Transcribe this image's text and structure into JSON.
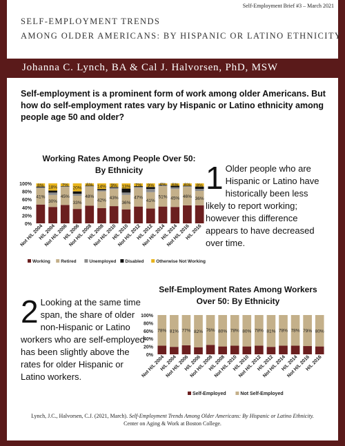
{
  "header": {
    "brief": "Self-Employment Brief #3 – March 2021",
    "title_line1": "Self-Employment Trends",
    "title_line2": "Among Older Americans: By Hispanic or Latino Ethnicity",
    "authors": "Johanna C. Lynch, BA & Cal J. Halvorsen, PhD, MSW"
  },
  "intro": "Self-employment is a prominent form of work among older Americans. But how do self-employment rates vary by Hispanic or Latino ethnicity among people age 50 and older?",
  "chart1_title_line1": "Working Rates Among People Over 50:",
  "chart1_title_line2": "By Ethnicity",
  "chart2_title_line1": "Self-Employment Rates Among Workers",
  "chart2_title_line2": "Over 50: By Ethnicity",
  "finding1": {
    "number": "1",
    "text": "Older people who are Hispanic or Latino have historically been less likely to report working; however this difference appears to have decreased over time."
  },
  "finding2": {
    "number": "2",
    "text": "Looking at the same time span, the share of older non-Hispanic or Latino workers who are self-employed has been slightly above the rates for older Hispanic or Latino workers."
  },
  "citation": {
    "authors": "Lynch, J.C., Halvorsen, C.J. (2021, March). ",
    "title": "Self-Employment Trends Among Older Americans: By Hispanic or Latino Ethnicity.",
    "publisher": "Center on Aging & Work at Boston College."
  },
  "colors": {
    "maroon": "#5a1a1a",
    "working": "#6b1f1f",
    "retired": "#c4b08a",
    "unemployed": "#8c8c8c",
    "disabled": "#111111",
    "other": "#e8b41c",
    "self_employed": "#6b1f1f",
    "not_self_employed": "#c4b08a"
  },
  "chart_data": [
    {
      "type": "bar",
      "stacked": true,
      "title": "Working Rates Among People Over 50: By Ethnicity",
      "categories": [
        "Not H/L 2004",
        "H/L 2004",
        "Not H/L 2006",
        "H/L 2006",
        "Not H/L 2008",
        "H/L 2008",
        "Not H/L 2010",
        "H/L 2010",
        "Not H/L 2012",
        "H/L 2012",
        "Not H/L 2014",
        "H/L 2014",
        "Not H/L 2016",
        "H/L 2016"
      ],
      "x_tick_labels": [
        "Not H/L 2004",
        "H/L 2004",
        "Not H/L 2006",
        "H/L 2006",
        "Not H/L 2008",
        "H/L 2008",
        "Not H/L 2010",
        "H/L 2010",
        "Not H/L 2012",
        "H/L 2012",
        "Not H/L 2014",
        "H/L 2014",
        "Not H/L 2016",
        "H/L 2016"
      ],
      "y_ticks": [
        "100%",
        "80%",
        "60%",
        "40%",
        "20%",
        "0%"
      ],
      "ylim": [
        0,
        100
      ],
      "legend_position": "bottom",
      "series": [
        {
          "name": "Working",
          "values": [
            47,
            41,
            46,
            36,
            44,
            38,
            43,
            35,
            42,
            37,
            42,
            41,
            45,
            45
          ]
        },
        {
          "name": "Retired",
          "values": [
            41,
            30,
            45,
            33,
            48,
            42,
            43,
            36,
            47,
            41,
            51,
            45,
            46,
            36
          ]
        },
        {
          "name": "Unemployed",
          "values": [
            2,
            6,
            1,
            5,
            1,
            3,
            3,
            6,
            2,
            8,
            2,
            4,
            2,
            5
          ]
        },
        {
          "name": "Disabled",
          "values": [
            2,
            5,
            1,
            6,
            1,
            3,
            2,
            10,
            2,
            5,
            1,
            4,
            1,
            6
          ]
        },
        {
          "name": "Otherwise Not Working",
          "values": [
            8,
            18,
            7,
            20,
            6,
            14,
            9,
            13,
            7,
            9,
            4,
            6,
            6,
            8
          ]
        }
      ],
      "data_labels": {
        "Retired": [
          "41%",
          "30%",
          "45%",
          "33%",
          "48%",
          "42%",
          "43%",
          "36%",
          "47%",
          "41%",
          "51%",
          "45%",
          "46%",
          "36%"
        ],
        "Otherwise Not Working": [
          "8%",
          "18%",
          "7%",
          "20%",
          "6%",
          "14%",
          "9%",
          "13%",
          "7%",
          "9%",
          "4%",
          "6%",
          "6%",
          "8%"
        ]
      }
    },
    {
      "type": "bar",
      "stacked": true,
      "title": "Self-Employment Rates Among Workers Over 50: By Ethnicity",
      "categories": [
        "Not H/L 2004",
        "H/L 2004",
        "Not H/L 2006",
        "H/L 2006",
        "Not H/L 2008",
        "H/L 2008",
        "Not H/L 2010",
        "H/L 2010",
        "Not H/L 2012",
        "H/L 2012",
        "Not H/L 2014",
        "H/L 2014",
        "Not H/L 2016",
        "H/L 2016"
      ],
      "x_tick_labels": [
        "Not H/L 2004",
        "H/L 2004",
        "Not H/L 2006",
        "H/L 2006",
        "Not H/L 2008",
        "H/L 2008",
        "Not H/L 2010",
        "H/L 2010",
        "Not H/L 2012",
        "H/L 2012",
        "Not H/L 2014",
        "H/L 2014",
        "Not H/L 2016",
        "H/L 2016"
      ],
      "y_ticks": [
        "100%",
        "80%",
        "60%",
        "40%",
        "20%",
        "0%"
      ],
      "ylim": [
        0,
        100
      ],
      "legend_position": "bottom",
      "series": [
        {
          "name": "Self-Employed",
          "values": [
            22,
            19,
            23,
            18,
            24,
            20,
            22,
            20,
            22,
            19,
            22,
            22,
            21,
            20
          ]
        },
        {
          "name": "Not Self-Employed",
          "values": [
            78,
            81,
            77,
            82,
            76,
            80,
            78,
            80,
            78,
            81,
            78,
            78,
            79,
            80
          ]
        }
      ],
      "data_labels": {
        "Not Self-Employed": [
          "78%",
          "81%",
          "77%",
          "82%",
          "76%",
          "80%",
          "78%",
          "80%",
          "78%",
          "81%",
          "78%",
          "78%",
          "79%",
          "80%"
        ]
      }
    }
  ]
}
